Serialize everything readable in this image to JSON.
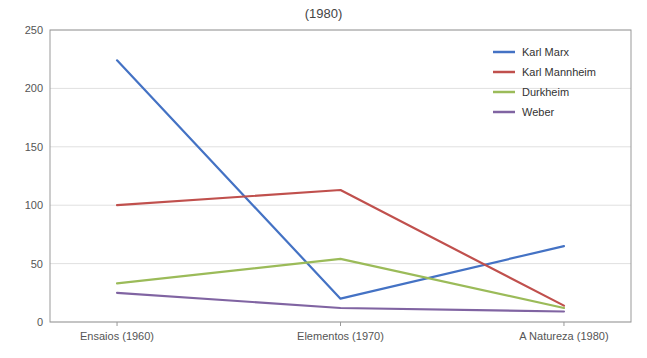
{
  "chart_data": {
    "type": "line",
    "title": "(1980)",
    "categories": [
      "Ensaios (1960)",
      "Elementos (1970)",
      "A Natureza (1980)"
    ],
    "series": [
      {
        "name": "Karl Marx",
        "values": [
          224,
          20,
          65
        ],
        "color": "#4472C4"
      },
      {
        "name": "Karl Mannheim",
        "values": [
          100,
          113,
          14
        ],
        "color": "#C0504D"
      },
      {
        "name": "Durkheim",
        "values": [
          33,
          54,
          12
        ],
        "color": "#9BBB59"
      },
      {
        "name": "Weber",
        "values": [
          25,
          12,
          9
        ],
        "color": "#8064A2"
      }
    ],
    "ylim": [
      0,
      250
    ],
    "yticks": [
      0,
      50,
      100,
      150,
      200,
      250
    ],
    "grid": true,
    "legend": "upper right"
  }
}
